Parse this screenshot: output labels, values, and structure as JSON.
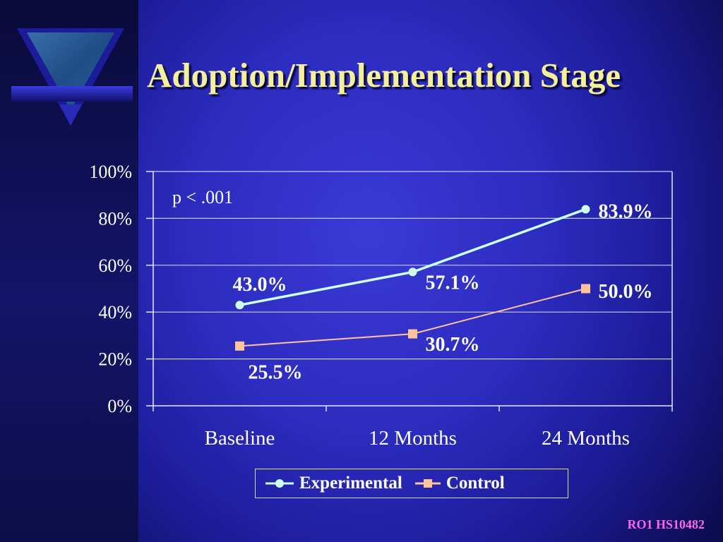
{
  "slide": {
    "title": "Adoption/Implementation Stage",
    "footer_code": "RO1 HS10482",
    "colors": {
      "title": "#f4ef9a",
      "footer": "#ff66e8",
      "experimental": "#ccffee",
      "control": "#ffc39a"
    },
    "logo_icon": "inverted-triangle-emblem-icon"
  },
  "chart_data": {
    "type": "line",
    "categories": [
      "Baseline",
      "12 Months",
      "24 Months"
    ],
    "series": [
      {
        "name": "Experimental",
        "values": [
          43.0,
          57.1,
          83.9
        ],
        "labels": [
          "43.0%",
          "57.1%",
          "83.9%"
        ],
        "marker": "circle"
      },
      {
        "name": "Control",
        "values": [
          25.5,
          30.7,
          50.0
        ],
        "labels": [
          "25.5%",
          "30.7%",
          "50.0%"
        ],
        "marker": "square"
      }
    ],
    "y_ticks": [
      "0%",
      "20%",
      "40%",
      "60%",
      "80%",
      "100%"
    ],
    "ylim": [
      0,
      100
    ],
    "annotation": "p < .001",
    "grid": true,
    "legend_position": "bottom"
  }
}
